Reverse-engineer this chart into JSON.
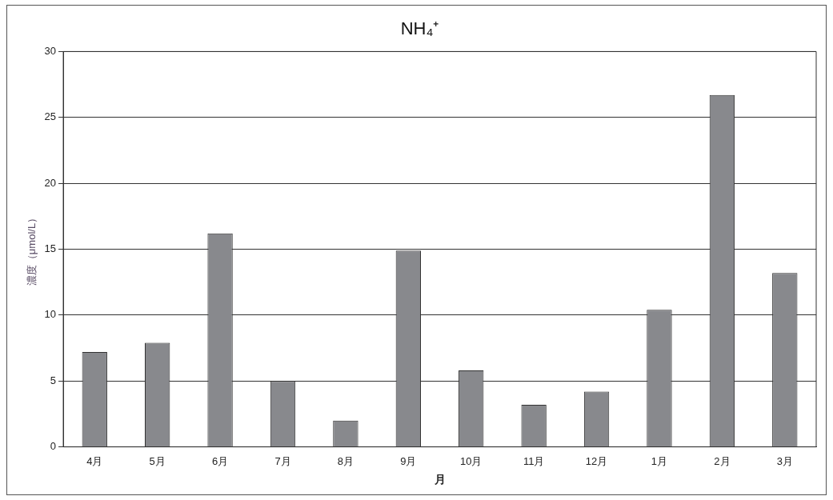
{
  "chart_data": {
    "type": "bar",
    "title": "NH₄⁺",
    "xlabel": "月",
    "ylabel": "濃度（μmol/L）",
    "categories": [
      "4月",
      "5月",
      "6月",
      "7月",
      "8月",
      "9月",
      "10月",
      "11月",
      "12月",
      "1月",
      "2月",
      "3月"
    ],
    "values": [
      7.2,
      7.9,
      16.2,
      5.0,
      2.0,
      14.9,
      5.8,
      3.2,
      4.2,
      10.4,
      26.7,
      13.2
    ],
    "color": "#88898d",
    "ylim": [
      0,
      30
    ],
    "yticks": [
      0,
      5,
      10,
      15,
      20,
      25,
      30
    ],
    "grid": "y",
    "legend": false
  }
}
